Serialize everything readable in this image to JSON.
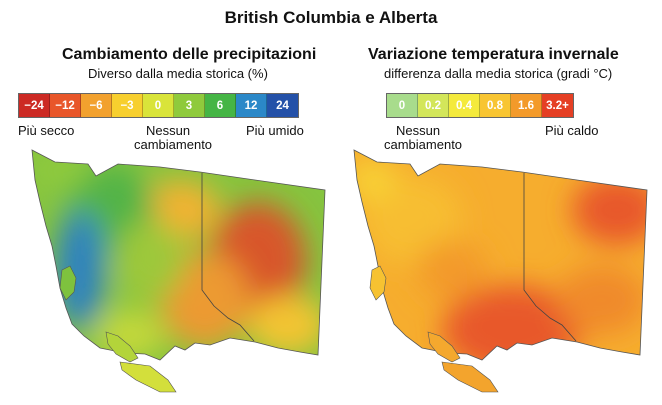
{
  "title": "British Columbia e Alberta",
  "precip": {
    "title": "Cambiamento delle precipitazioni",
    "subtitle": "Diverso dalla media storica (%)",
    "legend": [
      {
        "label": "−24",
        "color": "#cc2a24"
      },
      {
        "label": "−12",
        "color": "#e8562a"
      },
      {
        "label": "−6",
        "color": "#f2a12e"
      },
      {
        "label": "−3",
        "color": "#f7cf2e"
      },
      {
        "label": "0",
        "color": "#d9e43a"
      },
      {
        "label": "3",
        "color": "#8fca3c"
      },
      {
        "label": "6",
        "color": "#45b545"
      },
      {
        "label": "12",
        "color": "#2b88c8"
      },
      {
        "label": "24",
        "color": "#2451a8"
      }
    ],
    "low_label": "Più secco",
    "mid_label_1": "Nessun",
    "mid_label_2": "cambiamento",
    "high_label": "Più umido"
  },
  "temp": {
    "title": "Variazione temperatura invernale",
    "subtitle": "differenza dalla media storica (gradi °C)",
    "legend": [
      {
        "label": "0",
        "color": "#a8dc8c"
      },
      {
        "label": "0.2",
        "color": "#d3e65a"
      },
      {
        "label": "0.4",
        "color": "#f4ea3c"
      },
      {
        "label": "0.8",
        "color": "#f8c532"
      },
      {
        "label": "1.6",
        "color": "#f39a2a"
      },
      {
        "label": "3.2+",
        "color": "#e53f24"
      }
    ],
    "low_label_1": "Nessun",
    "low_label_2": "cambiamento",
    "high_label": "Più caldo"
  }
}
